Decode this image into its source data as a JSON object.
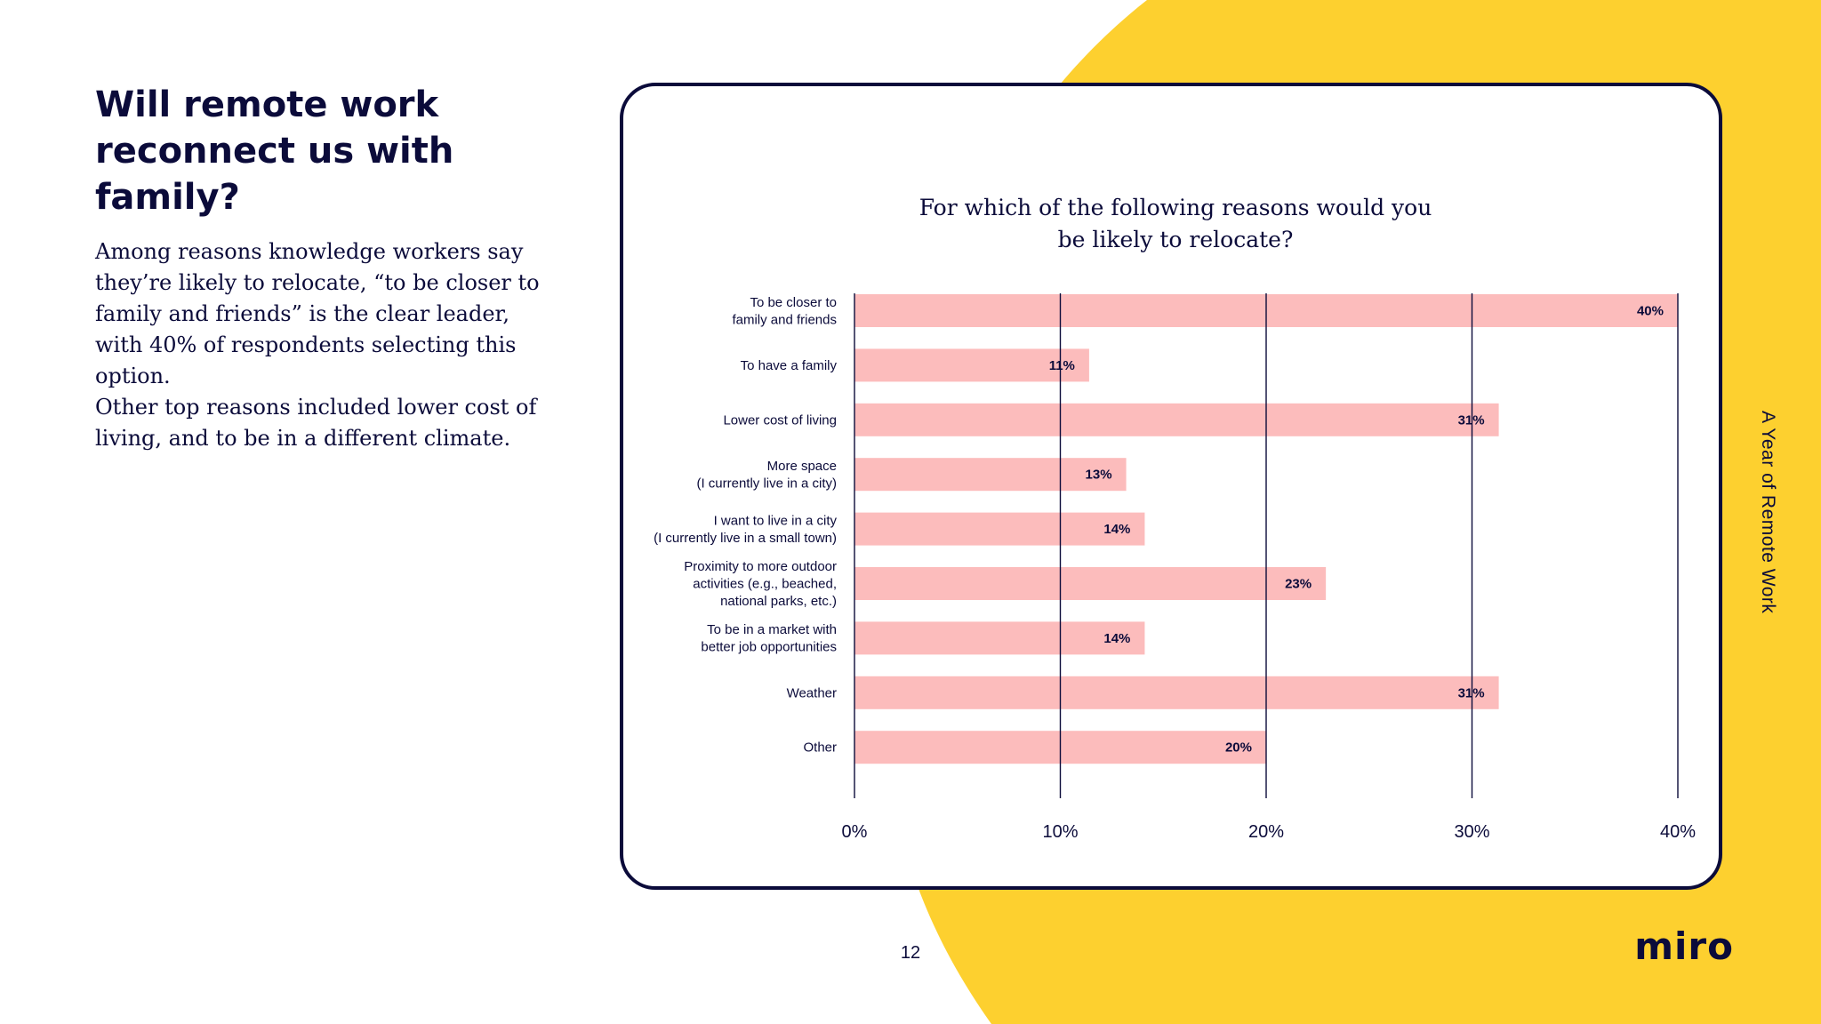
{
  "heading": "Will remote work reconnect us with family?",
  "paragraphs": [
    "Among reasons knowledge workers say they’re likely to relocate, “to be closer to family and friends” is the clear leader, with 40% of respondents selecting this option.",
    "Other top reasons included lower cost of living, and to be in a different climate."
  ],
  "page_number": "12",
  "side_label": "A Year of Remote Work",
  "logo": "miro",
  "colors": {
    "accent": "#FDD02F",
    "bar": "#FCBCBC",
    "ink": "#0B0B3A"
  },
  "chart_data": {
    "type": "bar",
    "orientation": "horizontal",
    "title": "For which of the following reasons would you be likely to relocate?",
    "categories": [
      [
        "To be closer to",
        "family and friends"
      ],
      [
        "To have a family"
      ],
      [
        "Lower cost of living"
      ],
      [
        "More space",
        "(I currently live in a city)"
      ],
      [
        "I want to live in a city",
        "(I currently live in a small town)"
      ],
      [
        "Proximity to more outdoor",
        "activities (e.g., beached,",
        "national parks, etc.)"
      ],
      [
        "To be in a market with",
        "better job opportunities"
      ],
      [
        "Weather"
      ],
      [
        "Other"
      ]
    ],
    "values": [
      40,
      11.4,
      31.3,
      13.2,
      14.1,
      22.9,
      14.1,
      31.3,
      20
    ],
    "data_labels": [
      "40%",
      "11%",
      "31%",
      "13%",
      "14%",
      "23%",
      "14%",
      "31%",
      "20%"
    ],
    "x_ticks": [
      "0%",
      "10%",
      "20%",
      "30%",
      "40%"
    ],
    "xlim": [
      0,
      40
    ],
    "grid": true
  }
}
